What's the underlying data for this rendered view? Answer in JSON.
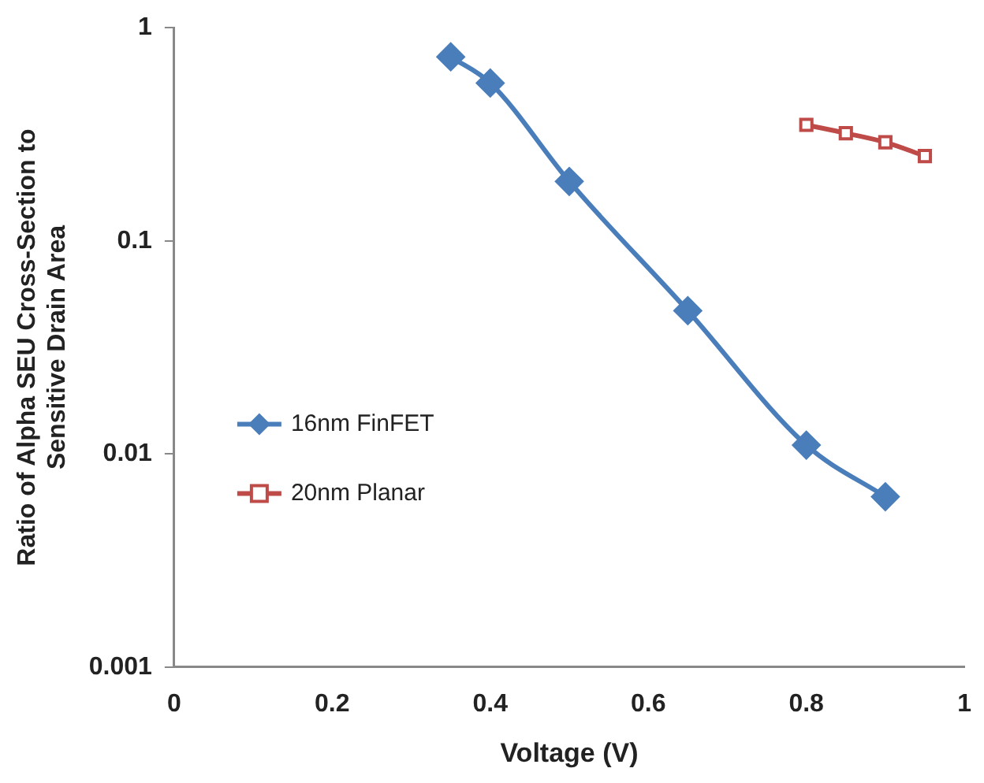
{
  "chart_data": {
    "type": "line",
    "xlabel": "Voltage (V)",
    "ylabel": "Ratio of Alpha SEU Cross-Section to Sensitive Drain Area",
    "log": "y",
    "grid": false,
    "legend": "left",
    "xlim": [
      0,
      1
    ],
    "xticks": [
      0,
      0.2,
      0.4,
      0.6,
      0.8,
      1
    ],
    "ylim": [
      0.001,
      1
    ],
    "yticks": [
      0.001,
      0.01,
      0.1,
      1
    ],
    "series": [
      {
        "name": "16nm FinFET",
        "color": "#4a7ebb",
        "marker": "diamond",
        "x": [
          0.35,
          0.4,
          0.5,
          0.65,
          0.8,
          0.9
        ],
        "values": [
          0.73,
          0.55,
          0.19,
          0.047,
          0.011,
          0.0063
        ]
      },
      {
        "name": "20nm Planar",
        "color": "#be4b48",
        "marker": "square",
        "x": [
          0.8,
          0.85,
          0.9,
          0.95
        ],
        "values": [
          0.35,
          0.32,
          0.29,
          0.25
        ]
      }
    ]
  }
}
